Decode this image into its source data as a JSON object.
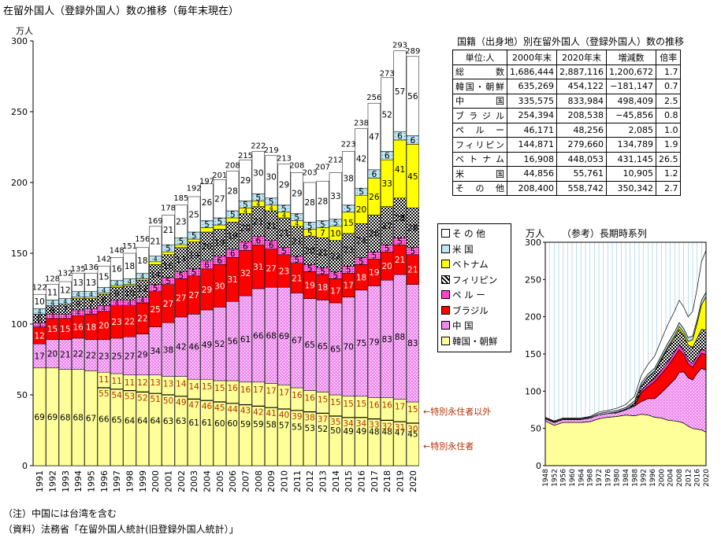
{
  "title": "在留外国人（登録外国人）数の推移（毎年末現在）",
  "notes": [
    "（注）中国には台湾を含む",
    "（資料）法務省「在留外国人統計(旧登録外国人統計）」"
  ],
  "legend": [
    {
      "label": "そ の 他",
      "color": "#ffffff"
    },
    {
      "label": "米 国",
      "color": "#bfe6f2"
    },
    {
      "label": "ベトナム",
      "color": "#ffff00"
    },
    {
      "label": "フィリピン",
      "color": "#666666"
    },
    {
      "label": "ペ ル ー",
      "color": "#ff66cc"
    },
    {
      "label": "ブラジル",
      "color": "#ff0000"
    },
    {
      "label": "中 国",
      "color": "#ee88ee"
    },
    {
      "label": "韓国・朝鮮",
      "color": "#ffff99"
    }
  ],
  "annotations": {
    "non_special": "←特別永住者以外",
    "special": "←特別永住者"
  },
  "chart_data": [
    {
      "type": "bar",
      "stacked": true,
      "ylabel": "万人",
      "ylim": [
        0,
        300
      ],
      "yticks": [
        0,
        50,
        100,
        150,
        200,
        250,
        300
      ],
      "categories": [
        "1991",
        "1992",
        "1993",
        "1994",
        "1995",
        "1996",
        "1997",
        "1998",
        "1999",
        "2000",
        "2001",
        "2002",
        "2003",
        "2004",
        "2005",
        "2006",
        "2007",
        "2008",
        "2009",
        "2010",
        "2011",
        "2012",
        "2013",
        "2014",
        "2015",
        "2016",
        "2017",
        "2018",
        "2019",
        "2020"
      ],
      "totals": [
        122,
        128,
        132,
        135,
        136,
        142,
        148,
        151,
        156,
        169,
        178,
        185,
        192,
        197,
        201,
        208,
        215,
        222,
        219,
        213,
        208,
        203,
        207,
        212,
        223,
        238,
        256,
        273,
        293,
        289
      ],
      "special_permanent": [
        null,
        null,
        null,
        null,
        null,
        55,
        54,
        53,
        52,
        51,
        50,
        49,
        47,
        46,
        45,
        44,
        43,
        42,
        41,
        40,
        39,
        38,
        37,
        35,
        34,
        34,
        33,
        32,
        31,
        30
      ],
      "series": [
        {
          "name": "韓国・朝鮮",
          "values": [
            69,
            69,
            68,
            68,
            67,
            66,
            65,
            64,
            64,
            64,
            63,
            63,
            61,
            61,
            60,
            60,
            59,
            59,
            58,
            57,
            55,
            53,
            52,
            50,
            49,
            49,
            48,
            48,
            47,
            45
          ]
        },
        {
          "name": "中 国",
          "values": [
            17,
            20,
            21,
            22,
            22,
            23,
            25,
            27,
            29,
            34,
            38,
            42,
            46,
            49,
            52,
            56,
            61,
            66,
            68,
            69,
            67,
            65,
            65,
            65,
            70,
            75,
            79,
            83,
            88,
            83
          ]
        },
        {
          "name": "ブラジル",
          "values": [
            12,
            15,
            15,
            16,
            18,
            20,
            23,
            22,
            22,
            25,
            27,
            27,
            27,
            29,
            30,
            31,
            32,
            31,
            27,
            23,
            21,
            19,
            18,
            17,
            17,
            18,
            19,
            20,
            21,
            21
          ]
        },
        {
          "name": "ペ ル ー",
          "values": [
            3,
            3,
            3,
            4,
            4,
            4,
            4,
            4,
            4,
            5,
            5,
            5,
            5,
            6,
            6,
            6,
            6,
            6,
            6,
            5,
            5,
            5,
            5,
            5,
            5,
            5,
            5,
            5,
            5,
            5
          ]
        },
        {
          "name": "フィリピン",
          "values": [
            6,
            6,
            7,
            8,
            7,
            8,
            9,
            10,
            12,
            14,
            16,
            17,
            19,
            20,
            19,
            19,
            20,
            21,
            21,
            21,
            21,
            20,
            21,
            22,
            23,
            24,
            26,
            27,
            28,
            28
          ]
        },
        {
          "name": "ベトナム",
          "values": [
            0,
            0,
            0,
            1,
            1,
            1,
            1,
            1,
            1,
            2,
            2,
            2,
            2,
            3,
            3,
            3,
            4,
            4,
            4,
            4,
            4,
            5,
            7,
            10,
            15,
            20,
            26,
            33,
            41,
            45
          ]
        },
        {
          "name": "米 国",
          "values": [
            4,
            4,
            4,
            4,
            4,
            4,
            4,
            4,
            4,
            4,
            5,
            5,
            5,
            5,
            5,
            5,
            5,
            5,
            5,
            5,
            5,
            5,
            5,
            5,
            5,
            5,
            6,
            6,
            6,
            6
          ]
        },
        {
          "name": "そ の 他",
          "values": [
            10,
            11,
            12,
            13,
            13,
            15,
            16,
            18,
            18,
            21,
            21,
            23,
            25,
            26,
            27,
            28,
            29,
            30,
            30,
            29,
            29,
            28,
            28,
            33,
            38,
            42,
            47,
            52,
            57,
            56
          ]
        }
      ],
      "bar_labels": {
        "韓国・朝鮮": [
          69,
          69,
          68,
          68,
          67,
          66,
          65,
          64,
          64,
          64,
          63,
          63,
          61,
          61,
          60,
          60,
          59,
          59,
          58,
          57,
          55,
          53,
          52,
          50,
          49,
          49,
          48,
          48,
          47,
          45
        ],
        "中 国": [
          17,
          20,
          21,
          22,
          22,
          23,
          25,
          27,
          29,
          34,
          38,
          42,
          46,
          49,
          52,
          56,
          61,
          66,
          68,
          69,
          67,
          65,
          65,
          65,
          70,
          75,
          79,
          83,
          88,
          83
        ],
        "ブラジル": [
          12,
          15,
          15,
          16,
          18,
          20,
          23,
          22,
          22,
          25,
          27,
          27,
          27,
          29,
          30,
          31,
          32,
          31,
          27,
          23,
          21,
          19,
          18,
          17,
          17,
          18,
          19,
          20,
          21,
          21
        ],
        "ペ ル ー": [
          3,
          3,
          3,
          4,
          4,
          4,
          4,
          4,
          4,
          5,
          5,
          5,
          5,
          6,
          6,
          6,
          6,
          6,
          6,
          5,
          5,
          5,
          5,
          5,
          5,
          5,
          5,
          5,
          5,
          5
        ],
        "フィリピン": [
          6,
          6,
          7,
          8,
          7,
          8,
          9,
          10,
          12,
          14,
          16,
          17,
          19,
          20,
          19,
          19,
          20,
          21,
          21,
          21,
          21,
          20,
          21,
          22,
          23,
          24,
          26,
          27,
          28,
          28
        ],
        "ベトナム": [
          null,
          null,
          null,
          null,
          null,
          null,
          null,
          null,
          null,
          null,
          null,
          null,
          null,
          null,
          null,
          null,
          4,
          4,
          4,
          4,
          4,
          5,
          7,
          10,
          15,
          20,
          26,
          33,
          41,
          45
        ],
        "米 国": [
          4,
          4,
          4,
          4,
          4,
          4,
          4,
          4,
          4,
          4,
          5,
          5,
          5,
          5,
          5,
          5,
          5,
          5,
          5,
          5,
          5,
          5,
          5,
          5,
          5,
          5,
          6,
          6,
          6,
          6
        ],
        "そ の 他": [
          10,
          11,
          12,
          13,
          13,
          15,
          16,
          18,
          18,
          21,
          21,
          23,
          25,
          26,
          27,
          28,
          29,
          30,
          30,
          29,
          29,
          28,
          28,
          33,
          38,
          42,
          47,
          52,
          57,
          56
        ],
        "special_permanent": [
          null,
          null,
          null,
          null,
          null,
          11,
          11,
          11,
          12,
          13,
          13,
          14,
          14,
          15,
          15,
          16,
          16,
          17,
          17,
          17,
          16,
          16,
          15,
          15,
          15,
          15,
          16,
          16,
          17,
          15
        ]
      }
    },
    {
      "type": "table",
      "title": "国籍（出身地）別在留外国人（登録外国人）数の推移",
      "columns": [
        "単位:人",
        "2000年末",
        "2020年末",
        "増減数",
        "倍率"
      ],
      "rows": [
        [
          "総 数",
          "1,686,444",
          "2,887,116",
          "1,200,672",
          "1.7"
        ],
        [
          "韓国・朝鮮",
          "635,269",
          "454,122",
          "−181,147",
          "0.7"
        ],
        [
          "中 国",
          "335,575",
          "833,984",
          "498,409",
          "2.5"
        ],
        [
          "ブラジル",
          "254,394",
          "208,538",
          "−45,856",
          "0.8"
        ],
        [
          "ペ ル ー",
          "46,171",
          "48,256",
          "2,085",
          "1.0"
        ],
        [
          "フィリピン",
          "144,871",
          "279,660",
          "134,789",
          "1.9"
        ],
        [
          "ベトナム",
          "16,908",
          "448,053",
          "431,145",
          "26.5"
        ],
        [
          "米 国",
          "44,856",
          "55,761",
          "10,905",
          "1.2"
        ],
        [
          "そ の 他",
          "208,400",
          "558,742",
          "350,342",
          "2.7"
        ]
      ]
    },
    {
      "type": "area",
      "title": "（参考）長期時系列",
      "ylabel": "万人",
      "ylim": [
        0,
        300
      ],
      "yticks": [
        0,
        50,
        100,
        150,
        200,
        250,
        300
      ],
      "xticks": [
        "1948",
        "1952",
        "1956",
        "1960",
        "1964",
        "1968",
        "1972",
        "1976",
        "1980",
        "1984",
        "1988",
        "1992",
        "1996",
        "2000",
        "2004",
        "2008",
        "2012",
        "2016",
        "2020"
      ],
      "x": [
        1948,
        1952,
        1956,
        1960,
        1964,
        1968,
        1972,
        1976,
        1980,
        1984,
        1988,
        1991,
        1994,
        1997,
        2000,
        2003,
        2006,
        2008,
        2010,
        2012,
        2014,
        2016,
        2018,
        2020
      ],
      "series": [
        {
          "name": "韓国・朝鮮",
          "values": [
            60,
            54,
            58,
            58,
            58,
            59,
            63,
            65,
            66,
            68,
            67,
            69,
            68,
            65,
            64,
            61,
            60,
            59,
            57,
            53,
            50,
            49,
            48,
            45
          ]
        },
        {
          "name": "中 国",
          "values": [
            3,
            4,
            4,
            4,
            4,
            5,
            5,
            5,
            5,
            7,
            13,
            17,
            22,
            25,
            34,
            46,
            56,
            66,
            69,
            65,
            65,
            75,
            83,
            83
          ]
        },
        {
          "name": "ブラジル",
          "values": [
            0,
            0,
            0,
            0,
            0,
            0,
            0,
            0,
            0,
            0,
            1,
            12,
            16,
            23,
            25,
            27,
            31,
            31,
            23,
            19,
            17,
            18,
            20,
            21
          ]
        },
        {
          "name": "ペ ル ー",
          "values": [
            0,
            0,
            0,
            0,
            0,
            0,
            0,
            0,
            0,
            0,
            0,
            3,
            4,
            4,
            5,
            5,
            6,
            6,
            5,
            5,
            5,
            5,
            5,
            5
          ]
        },
        {
          "name": "フィリピン",
          "values": [
            0,
            0,
            0,
            0,
            0,
            0,
            0,
            0,
            1,
            1,
            3,
            6,
            8,
            9,
            14,
            19,
            19,
            21,
            21,
            20,
            22,
            24,
            27,
            28
          ]
        },
        {
          "name": "ベトナム",
          "values": [
            0,
            0,
            0,
            0,
            0,
            0,
            0,
            0,
            0,
            0,
            0,
            0,
            1,
            1,
            2,
            2,
            3,
            4,
            4,
            5,
            10,
            20,
            33,
            45
          ]
        },
        {
          "name": "米 国",
          "values": [
            1,
            1,
            1,
            1,
            1,
            1,
            2,
            2,
            2,
            2,
            3,
            4,
            4,
            4,
            4,
            5,
            5,
            5,
            5,
            5,
            5,
            5,
            6,
            6
          ]
        },
        {
          "name": "そ の 他",
          "values": [
            1,
            1,
            1,
            1,
            1,
            1,
            2,
            2,
            3,
            4,
            6,
            10,
            13,
            16,
            21,
            25,
            28,
            30,
            29,
            28,
            33,
            42,
            52,
            56
          ]
        }
      ]
    }
  ]
}
